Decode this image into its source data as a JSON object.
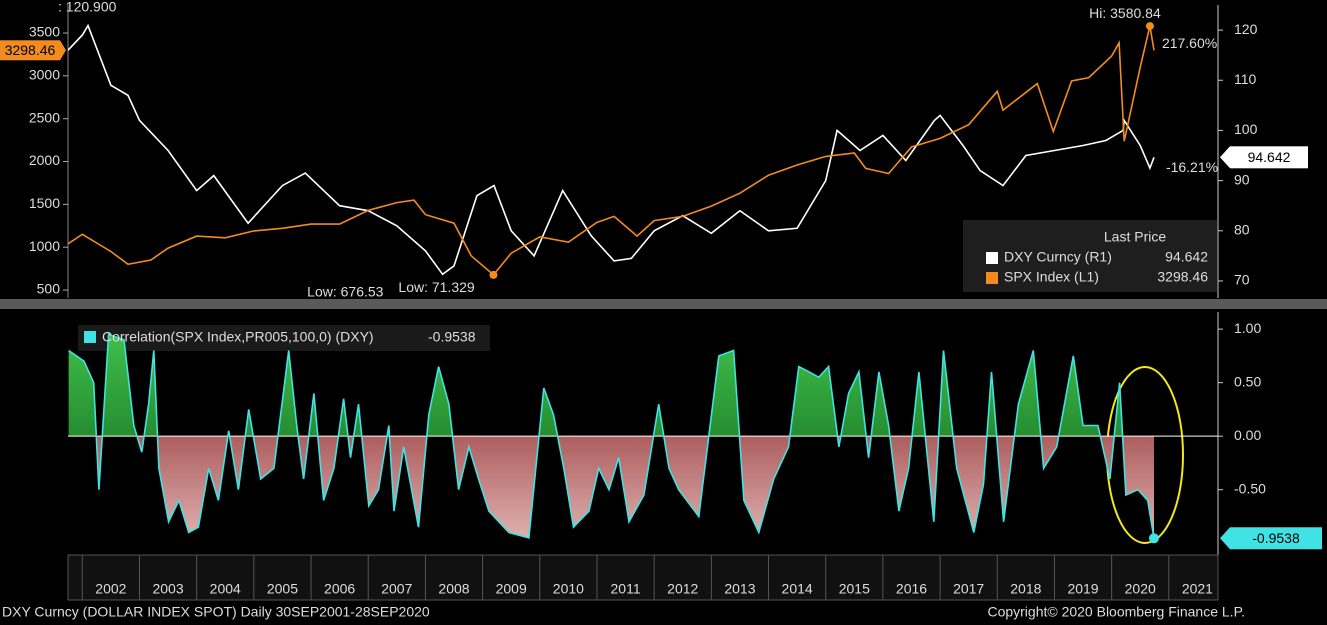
{
  "chart_data": [
    {
      "type": "line",
      "xlim": [
        2001.75,
        2021.86
      ],
      "ylim": [
        407,
        3827
      ],
      "yticks": [
        500,
        1000,
        1500,
        2000,
        2500,
        3000,
        3500
      ],
      "y2lim": [
        66.6,
        125
      ],
      "y2ticks": [
        70,
        80,
        90,
        100,
        110,
        120
      ],
      "legend_title": "Last Price",
      "legend": "lower right",
      "series": [
        {
          "name": "SPX Index (L1)",
          "color": "#f28c1e",
          "axis": "y",
          "hi_label": "Hi: 3580.84",
          "low_label": "Low: 676.53",
          "change": 217.6,
          "change_label": "217.60%",
          "x": [
            2001.75,
            2002.0,
            2002.5,
            2002.8,
            2003.2,
            2003.5,
            2004.0,
            2004.5,
            2005.0,
            2005.5,
            2006.0,
            2006.5,
            2007.0,
            2007.5,
            2007.8,
            2008.0,
            2008.5,
            2008.8,
            2009.19,
            2009.5,
            2010.0,
            2010.5,
            2011.0,
            2011.3,
            2011.7,
            2012.0,
            2012.5,
            2013.0,
            2013.5,
            2014.0,
            2014.5,
            2015.0,
            2015.5,
            2015.7,
            2016.1,
            2016.5,
            2017.0,
            2017.5,
            2018.0,
            2018.1,
            2018.7,
            2018.98,
            2019.3,
            2019.6,
            2020.0,
            2020.13,
            2020.22,
            2020.5,
            2020.67,
            2020.74
          ],
          "values": [
            1040,
            1150,
            950,
            800,
            850,
            990,
            1130,
            1110,
            1190,
            1220,
            1270,
            1270,
            1430,
            1520,
            1550,
            1380,
            1280,
            900,
            676.53,
            930,
            1120,
            1060,
            1290,
            1360,
            1130,
            1310,
            1360,
            1480,
            1630,
            1840,
            1960,
            2060,
            2100,
            1920,
            1860,
            2170,
            2270,
            2430,
            2820,
            2600,
            2910,
            2350,
            2940,
            2980,
            3230,
            3386,
            2237,
            3100,
            3580.84,
            3298.46
          ]
        },
        {
          "name": "DXY Curncy (R1)",
          "color": "#ffffff",
          "axis": "y2",
          "hi_label": ": 120.900",
          "low_label": "Low: 71.329",
          "change": -16.21,
          "change_label": "-16.21%",
          "x": [
            2001.75,
            2002.0,
            2002.1,
            2002.5,
            2002.8,
            2003.0,
            2003.5,
            2004.0,
            2004.3,
            2004.9,
            2005.5,
            2005.9,
            2006.5,
            2007.0,
            2007.5,
            2008.0,
            2008.3,
            2008.5,
            2008.9,
            2009.2,
            2009.5,
            2009.9,
            2010.4,
            2010.9,
            2011.3,
            2011.6,
            2012.0,
            2012.5,
            2013.0,
            2013.5,
            2014.0,
            2014.5,
            2015.0,
            2015.2,
            2015.6,
            2016.0,
            2016.4,
            2016.9,
            2017.0,
            2017.4,
            2017.7,
            2018.1,
            2018.5,
            2019.0,
            2019.5,
            2019.9,
            2020.2,
            2020.22,
            2020.5,
            2020.67,
            2020.74
          ],
          "values": [
            116,
            119,
            120.9,
            109,
            107,
            102,
            96,
            88,
            91,
            81.5,
            89,
            91.5,
            85,
            84,
            81,
            76,
            71.329,
            73,
            87,
            89,
            80,
            75,
            88,
            79,
            74,
            74.5,
            80,
            83,
            79.5,
            84,
            80,
            80.5,
            90,
            100,
            96,
            99,
            94,
            102,
            103,
            97,
            92,
            89,
            95,
            96,
            97,
            98,
            100,
            102,
            97,
            92.5,
            94.642
          ]
        }
      ]
    },
    {
      "type": "area",
      "xlim": [
        2001.75,
        2021.86
      ],
      "ylim": [
        -1.11,
        1.16
      ],
      "yticks": [
        {
          "value": 1,
          "label": "1.00"
        },
        {
          "value": 0.5,
          "label": "0.50"
        },
        {
          "value": 0,
          "label": "0.00"
        },
        {
          "value": -0.5,
          "label": "-0.50"
        }
      ],
      "xticks": [
        2002,
        2003,
        2004,
        2005,
        2006,
        2007,
        2008,
        2009,
        2010,
        2011,
        2012,
        2013,
        2014,
        2015,
        2016,
        2017,
        2018,
        2019,
        2020,
        2021
      ],
      "positive_color": "#1d8a2a",
      "negative_color": "#9c1a1a",
      "series": [
        {
          "name": "Correlation(SPX Index,PR005,100,0) (DXY)",
          "color": "#3fe3e3",
          "x": [
            2001.76,
            2002.03,
            2002.2,
            2002.29,
            2002.46,
            2002.73,
            2002.9,
            2003.04,
            2003.16,
            2003.25,
            2003.34,
            2003.51,
            2003.69,
            2003.86,
            2004.03,
            2004.21,
            2004.38,
            2004.56,
            2004.73,
            2004.91,
            2005.12,
            2005.35,
            2005.61,
            2005.75,
            2005.87,
            2006.05,
            2006.22,
            2006.4,
            2006.57,
            2006.69,
            2006.83,
            2007.01,
            2007.18,
            2007.36,
            2007.45,
            2007.62,
            2007.88,
            2008.06,
            2008.23,
            2008.41,
            2008.58,
            2008.76,
            2008.93,
            2009.11,
            2009.46,
            2009.81,
            2010.07,
            2010.24,
            2010.42,
            2010.59,
            2010.86,
            2011.03,
            2011.21,
            2011.38,
            2011.56,
            2011.82,
            2012.08,
            2012.26,
            2012.43,
            2012.78,
            2013.13,
            2013.39,
            2013.57,
            2013.83,
            2014.09,
            2014.35,
            2014.53,
            2014.71,
            2014.88,
            2015.05,
            2015.23,
            2015.4,
            2015.58,
            2015.75,
            2015.93,
            2016.1,
            2016.28,
            2016.45,
            2016.63,
            2016.89,
            2017.06,
            2017.29,
            2017.59,
            2017.76,
            2017.9,
            2018.11,
            2018.37,
            2018.63,
            2018.81,
            2019.04,
            2019.33,
            2019.5,
            2019.76,
            2019.97,
            2020.14,
            2020.25,
            2020.46,
            2020.63,
            2020.74
          ],
          "values": [
            0.8,
            0.7,
            0.5,
            -0.5,
            0.95,
            0.9,
            0.1,
            -0.15,
            0.3,
            0.8,
            -0.3,
            -0.8,
            -0.6,
            -0.9,
            -0.85,
            -0.3,
            -0.6,
            0.05,
            -0.5,
            0.25,
            -0.4,
            -0.3,
            0.8,
            0.1,
            -0.4,
            0.4,
            -0.6,
            -0.3,
            0.35,
            -0.2,
            0.3,
            -0.65,
            -0.5,
            0.1,
            -0.7,
            -0.1,
            -0.85,
            0.2,
            0.65,
            0.3,
            -0.5,
            -0.1,
            -0.4,
            -0.7,
            -0.9,
            -0.95,
            0.45,
            0.2,
            -0.3,
            -0.85,
            -0.7,
            -0.3,
            -0.5,
            -0.2,
            -0.8,
            -0.55,
            0.3,
            -0.3,
            -0.5,
            -0.75,
            0.75,
            0.8,
            -0.6,
            -0.9,
            -0.4,
            -0.1,
            0.65,
            0.6,
            0.55,
            0.65,
            -0.1,
            0.4,
            0.6,
            -0.2,
            0.6,
            0.1,
            -0.7,
            -0.3,
            0.6,
            -0.8,
            0.8,
            -0.3,
            -0.9,
            -0.45,
            0.6,
            -0.8,
            0.3,
            0.8,
            -0.3,
            -0.1,
            0.75,
            0.1,
            0.1,
            -0.4,
            0.5,
            -0.55,
            -0.5,
            -0.6,
            -0.9538
          ]
        }
      ]
    }
  ],
  "footer": {
    "left": "DXY Curncy (DOLLAR INDEX SPOT)  Daily 30SEP2001-28SEP2020",
    "right": "Copyright© 2020 Bloomberg Finance L.P."
  }
}
